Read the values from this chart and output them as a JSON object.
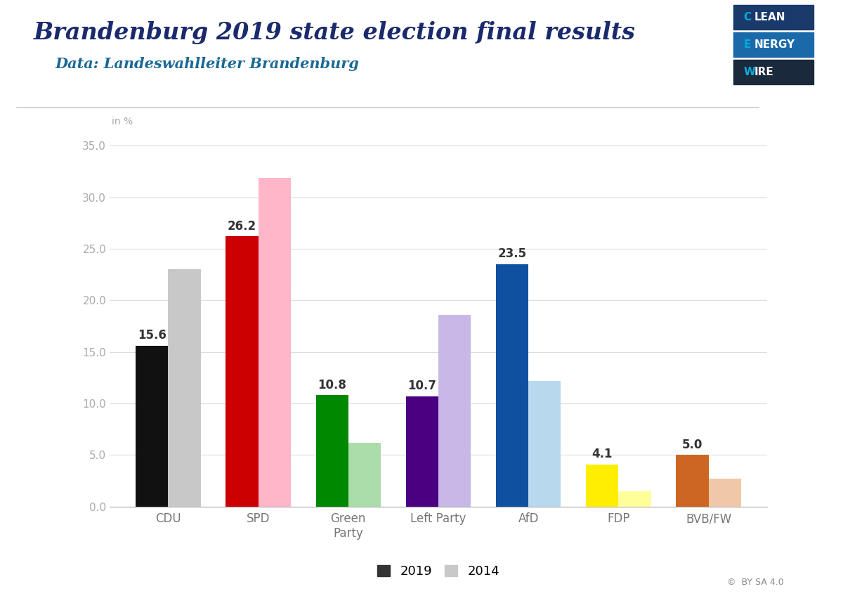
{
  "title": "Brandenburg 2019 state election final results",
  "subtitle": "Data: Landeswahlleiter Brandenburg",
  "ylabel": "in %",
  "categories": [
    "CDU",
    "SPD",
    "Green\nParty",
    "Left Party",
    "AfD",
    "FDP",
    "BVB/FW"
  ],
  "values_2019": [
    15.6,
    26.2,
    10.8,
    10.7,
    23.5,
    4.1,
    5.0
  ],
  "values_2014": [
    23.0,
    31.9,
    6.2,
    18.6,
    12.2,
    1.5,
    2.7
  ],
  "colors_2019": [
    "#111111",
    "#cc0000",
    "#008800",
    "#4b0082",
    "#1050a0",
    "#ffee00",
    "#cc6622"
  ],
  "colors_2014": [
    "#c8c8c8",
    "#ffb6c8",
    "#aaddaa",
    "#c8b8e8",
    "#b8d8ee",
    "#ffff99",
    "#f0c8a8"
  ],
  "ylim": [
    0,
    37
  ],
  "yticks": [
    0.0,
    5.0,
    10.0,
    15.0,
    20.0,
    25.0,
    30.0,
    35.0
  ],
  "title_color": "#1a2a6c",
  "subtitle_color": "#1a6896",
  "title_fontsize": 24,
  "subtitle_fontsize": 15,
  "bar_width": 0.36,
  "background_color": "#ffffff",
  "grid_color": "#dddddd",
  "header_bg": "#ffffff",
  "separator_color": "#cccccc",
  "logo_clean_bg": "#1a3a6c",
  "logo_energy_bg": "#1a6aaa",
  "logo_wire_bg": "#1a2a3c",
  "logo_text_white": "#ffffff",
  "logo_text_cyan": "#00aadd",
  "cc_color": "#888888"
}
